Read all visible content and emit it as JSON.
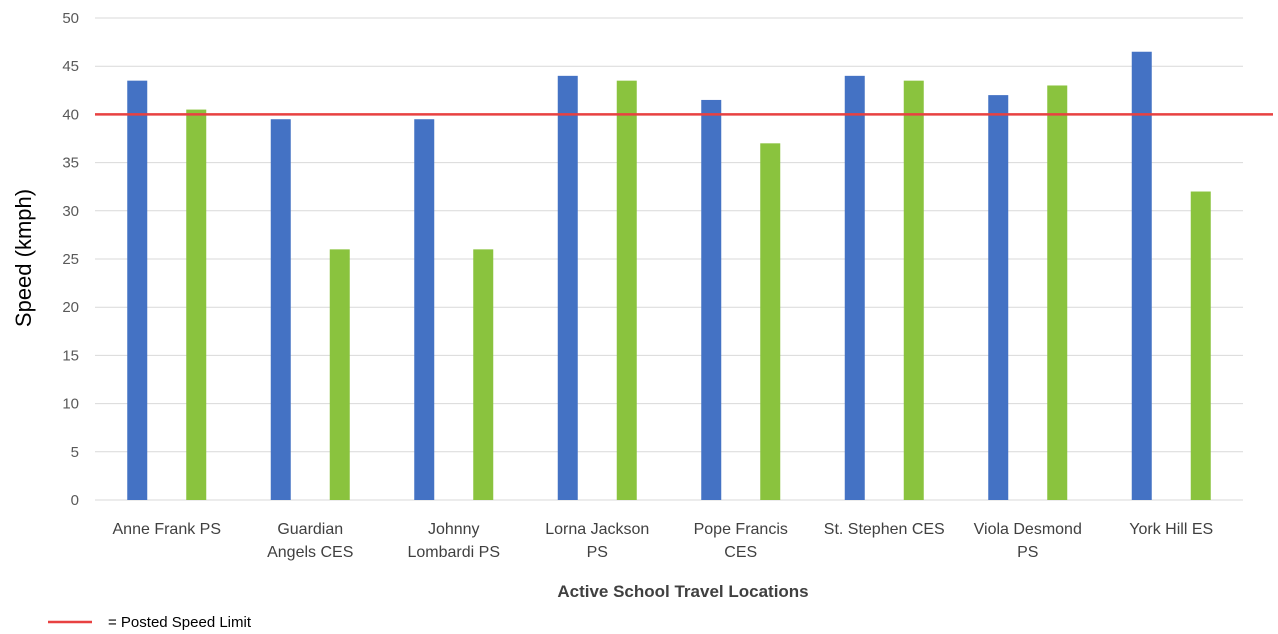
{
  "chart_data": {
    "type": "bar",
    "xlabel": "Active School Travel Locations",
    "ylabel": "Speed (kmph)",
    "ylim": [
      0,
      50
    ],
    "yticks": [
      0,
      5,
      10,
      15,
      20,
      25,
      30,
      35,
      40,
      45,
      50
    ],
    "grid": true,
    "categories": [
      [
        "Anne Frank PS"
      ],
      [
        "Guardian",
        "Angels CES"
      ],
      [
        "Johnny",
        "Lombardi PS"
      ],
      [
        "Lorna Jackson",
        "PS"
      ],
      [
        "Pope Francis",
        "CES"
      ],
      [
        "St. Stephen CES"
      ],
      [
        "Viola Desmond",
        "PS"
      ],
      [
        "York Hill ES"
      ]
    ],
    "series": [
      {
        "values": [
          43.5,
          39.5,
          39.5,
          44,
          41.5,
          44,
          42,
          46.5
        ]
      },
      {
        "values": [
          40.5,
          26,
          26,
          43.5,
          37,
          43.5,
          43,
          32
        ]
      }
    ],
    "reference_line": {
      "value": 40,
      "label": "= Posted Speed Limit"
    },
    "legend_position": "bottom-left"
  },
  "colors": {
    "series": [
      "#4472c4",
      "#8ac33e"
    ],
    "reference_line": "#e84141",
    "grid": "#d9d9d9"
  }
}
